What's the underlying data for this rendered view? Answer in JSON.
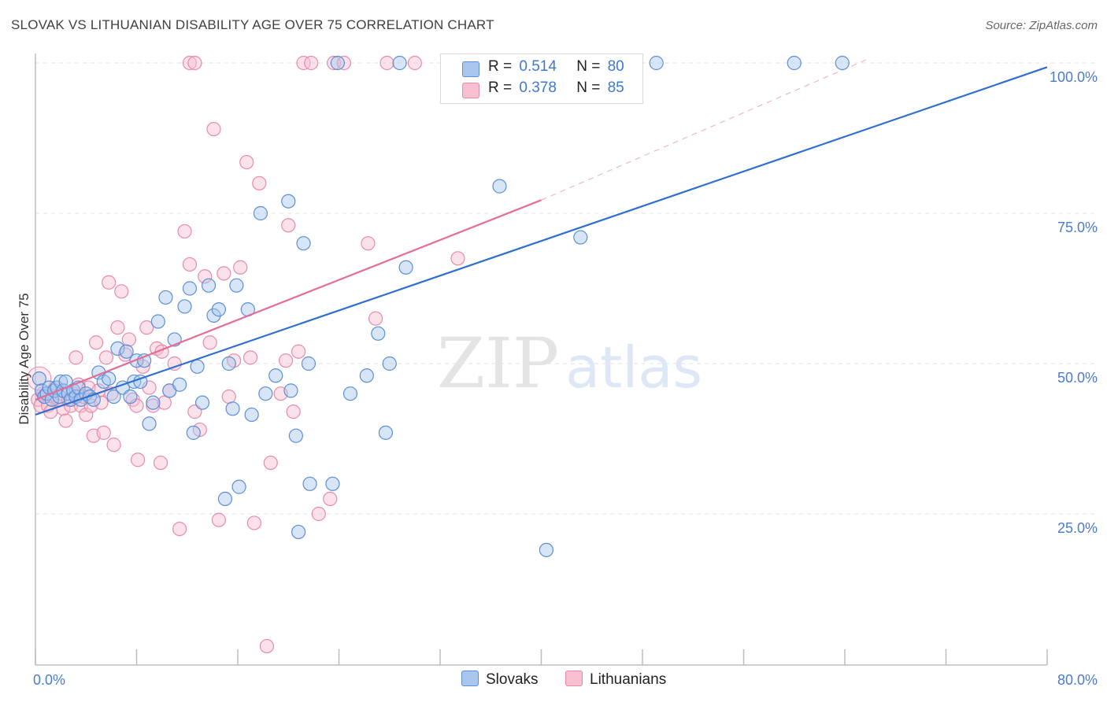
{
  "header": {
    "title": "SLOVAK VS LITHUANIAN DISABILITY AGE OVER 75 CORRELATION CHART",
    "source": "Source: ZipAtlas.com"
  },
  "watermark": {
    "zip": "ZIP",
    "atlas": "atlas"
  },
  "legend_top": {
    "rows": [
      {
        "r_label": "R =",
        "r_value": "0.514",
        "n_label": "N =",
        "n_value": "80"
      },
      {
        "r_label": "R =",
        "r_value": "0.378",
        "n_label": "N =",
        "n_value": "85"
      }
    ]
  },
  "legend_bottom": {
    "series1": "Slovaks",
    "series2": "Lithuanians"
  },
  "colors": {
    "slovak_fill": "#a9c6ee",
    "slovak_stroke": "#5b8fd6",
    "slovak_line": "#2f6fcf",
    "lith_fill": "#f7bfd0",
    "lith_stroke": "#e98aa8",
    "lith_line": "#e36d97",
    "tick_label": "#4a7bd0",
    "grid": "#e2e2e2"
  },
  "chart_data": {
    "type": "scatter",
    "title": "SLOVAK VS LITHUANIAN DISABILITY AGE OVER 75 CORRELATION CHART",
    "xlabel": "",
    "ylabel": "Disability Age Over 75",
    "xlim": [
      0,
      80
    ],
    "ylim": [
      0,
      105
    ],
    "x_tick_labels": [
      "0.0%",
      "80.0%"
    ],
    "y_ticks": [
      25,
      50,
      75,
      100
    ],
    "y_tick_labels": [
      "25.0%",
      "50.0%",
      "75.0%",
      "100.0%"
    ],
    "grid": true,
    "legend_position": "top-center",
    "series": [
      {
        "name": "Slovaks",
        "R": 0.514,
        "N": 80,
        "trend": {
          "x": [
            0,
            80
          ],
          "y": [
            41.5,
            99.3
          ]
        },
        "points": [
          [
            0.3,
            47.5
          ],
          [
            0.5,
            45.5
          ],
          [
            0.7,
            44.5
          ],
          [
            0.9,
            45
          ],
          [
            1.1,
            46
          ],
          [
            1.3,
            44
          ],
          [
            1.5,
            45.5
          ],
          [
            1.7,
            46
          ],
          [
            1.9,
            44.5
          ],
          [
            2.0,
            47
          ],
          [
            2.2,
            45.5
          ],
          [
            2.4,
            47
          ],
          [
            2.6,
            45
          ],
          [
            2.8,
            44
          ],
          [
            3.0,
            45.5
          ],
          [
            3.2,
            44.5
          ],
          [
            3.4,
            46
          ],
          [
            3.6,
            44
          ],
          [
            4.0,
            45
          ],
          [
            4.3,
            44.5
          ],
          [
            4.6,
            44
          ],
          [
            5.0,
            48.5
          ],
          [
            5.4,
            47
          ],
          [
            5.8,
            47.5
          ],
          [
            6.2,
            44.5
          ],
          [
            6.5,
            52.5
          ],
          [
            6.9,
            46
          ],
          [
            7.2,
            52
          ],
          [
            7.5,
            44.5
          ],
          [
            7.8,
            47
          ],
          [
            8.0,
            50.5
          ],
          [
            8.3,
            47
          ],
          [
            8.6,
            50.5
          ],
          [
            9.0,
            40
          ],
          [
            9.3,
            43.5
          ],
          [
            9.7,
            57
          ],
          [
            10.3,
            61
          ],
          [
            10.6,
            45.5
          ],
          [
            11.0,
            54
          ],
          [
            11.4,
            46.5
          ],
          [
            11.8,
            59.5
          ],
          [
            12.2,
            62.5
          ],
          [
            12.5,
            38.5
          ],
          [
            12.8,
            49.5
          ],
          [
            13.2,
            43.5
          ],
          [
            13.7,
            63
          ],
          [
            14.1,
            58
          ],
          [
            14.5,
            59
          ],
          [
            15.0,
            27.5
          ],
          [
            15.3,
            50
          ],
          [
            15.6,
            42.5
          ],
          [
            15.9,
            63
          ],
          [
            16.1,
            29.5
          ],
          [
            16.8,
            59
          ],
          [
            17.1,
            41.5
          ],
          [
            17.8,
            75
          ],
          [
            18.2,
            45
          ],
          [
            19.0,
            48
          ],
          [
            20.0,
            77
          ],
          [
            20.2,
            45.5
          ],
          [
            20.6,
            38
          ],
          [
            20.8,
            22
          ],
          [
            21.2,
            70
          ],
          [
            21.6,
            50
          ],
          [
            21.7,
            30
          ],
          [
            23.5,
            30
          ],
          [
            23.9,
            100
          ],
          [
            24.9,
            45
          ],
          [
            26.2,
            48
          ],
          [
            27.1,
            55
          ],
          [
            27.7,
            38.5
          ],
          [
            28.0,
            50
          ],
          [
            28.8,
            100
          ],
          [
            29.3,
            66
          ],
          [
            36.7,
            79.5
          ],
          [
            40.4,
            19
          ],
          [
            43.1,
            71
          ],
          [
            49.1,
            100
          ],
          [
            60.0,
            100
          ],
          [
            63.8,
            100
          ]
        ]
      },
      {
        "name": "Lithuanians",
        "R": 0.378,
        "N": 85,
        "trend": {
          "x": [
            0,
            40
          ],
          "y": [
            44,
            77.2
          ]
        },
        "trend_extended": {
          "x": [
            40,
            66
          ],
          "y": [
            77.2,
            100.8
          ]
        },
        "points": [
          [
            0.2,
            44
          ],
          [
            0.4,
            43
          ],
          [
            0.6,
            45
          ],
          [
            0.8,
            44.5
          ],
          [
            1.0,
            43
          ],
          [
            1.2,
            42
          ],
          [
            1.4,
            44.5
          ],
          [
            1.6,
            46
          ],
          [
            1.8,
            44
          ],
          [
            2.0,
            45
          ],
          [
            2.2,
            42.5
          ],
          [
            2.4,
            40.5
          ],
          [
            2.6,
            44
          ],
          [
            2.8,
            43
          ],
          [
            3.0,
            45
          ],
          [
            3.2,
            51
          ],
          [
            3.4,
            46.5
          ],
          [
            3.6,
            43
          ],
          [
            3.8,
            44.5
          ],
          [
            4.0,
            41.5
          ],
          [
            4.2,
            46
          ],
          [
            4.4,
            43
          ],
          [
            4.6,
            38
          ],
          [
            4.8,
            53.5
          ],
          [
            5.0,
            45.5
          ],
          [
            5.2,
            43.5
          ],
          [
            5.4,
            38.5
          ],
          [
            5.6,
            51
          ],
          [
            5.8,
            63.5
          ],
          [
            6.0,
            45
          ],
          [
            6.2,
            36.5
          ],
          [
            6.5,
            56
          ],
          [
            6.8,
            62
          ],
          [
            7.1,
            51.5
          ],
          [
            7.4,
            54
          ],
          [
            7.7,
            44
          ],
          [
            8.0,
            43
          ],
          [
            8.1,
            34
          ],
          [
            8.5,
            49.5
          ],
          [
            8.8,
            56
          ],
          [
            9.0,
            46
          ],
          [
            9.3,
            43
          ],
          [
            9.6,
            52.5
          ],
          [
            9.9,
            33.5
          ],
          [
            10.2,
            43.5
          ],
          [
            10.6,
            45.5
          ],
          [
            11.0,
            50
          ],
          [
            11.4,
            22.5
          ],
          [
            11.8,
            72
          ],
          [
            12.2,
            66.5
          ],
          [
            12.6,
            42
          ],
          [
            13.0,
            39
          ],
          [
            13.4,
            64.5
          ],
          [
            13.8,
            53.5
          ],
          [
            14.1,
            89
          ],
          [
            14.5,
            24
          ],
          [
            14.9,
            65
          ],
          [
            15.3,
            44.5
          ],
          [
            15.7,
            50.5
          ],
          [
            16.2,
            66
          ],
          [
            16.7,
            83.5
          ],
          [
            17.0,
            51
          ],
          [
            17.3,
            23.5
          ],
          [
            17.7,
            80
          ],
          [
            18.3,
            3
          ],
          [
            18.6,
            33.5
          ],
          [
            19.4,
            45
          ],
          [
            19.8,
            50.5
          ],
          [
            20.0,
            73
          ],
          [
            20.4,
            42
          ],
          [
            20.8,
            52
          ],
          [
            21.2,
            100
          ],
          [
            21.8,
            100
          ],
          [
            22.4,
            25
          ],
          [
            23.3,
            27.5
          ],
          [
            23.6,
            100
          ],
          [
            24.4,
            100
          ],
          [
            26.3,
            70
          ],
          [
            26.9,
            57.5
          ],
          [
            33.4,
            67.5
          ],
          [
            12.2,
            100
          ],
          [
            12.6,
            100
          ],
          [
            30.0,
            100
          ],
          [
            27.8,
            100
          ],
          [
            10.0,
            52
          ]
        ]
      }
    ]
  }
}
